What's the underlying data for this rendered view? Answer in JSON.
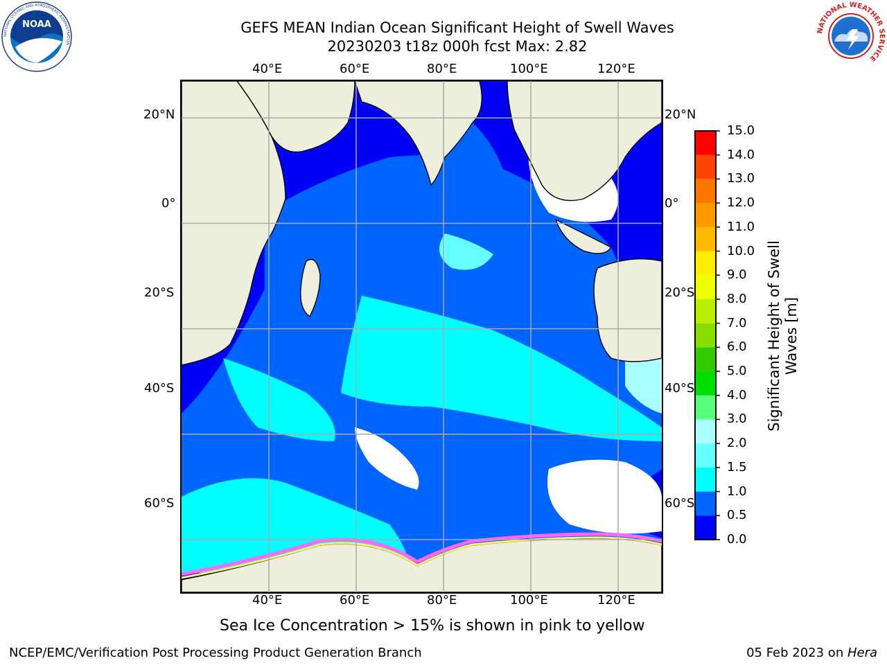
{
  "header": {
    "title_line1": "GEFS MEAN Indian Ocean Significant Height of Swell Waves",
    "title_line2": "20230203 t18z 000h fcst   Max: 2.82"
  },
  "logos": {
    "noaa": "NOAA",
    "nws_ring_text": "NATIONAL WEATHER SERVICE",
    "noaa_ring_text": "NATIONAL OCEANIC AND ATMOSPHERIC ADMINISTRATION"
  },
  "map": {
    "longitude_labels_top": [
      "40°E",
      "60°E",
      "80°E",
      "100°E",
      "120°E"
    ],
    "longitude_labels_bottom": [
      "40°E",
      "60°E",
      "80°E",
      "100°E",
      "120°E"
    ],
    "latitude_labels_left": [
      "20°N",
      "0°",
      "20°S",
      "40°S",
      "60°S"
    ],
    "latitude_labels_right": [
      "20°N",
      "0°",
      "20°S",
      "40°S",
      "60°S"
    ],
    "longitude_range": [
      20,
      130
    ],
    "latitude_range": [
      -70,
      27
    ],
    "gridlines": true,
    "max_value": 2.82,
    "colors": {
      "land": "#eeeedd",
      "masked_ice": "#ffffff",
      "ice_edge": [
        "#ff66ff",
        "#ffcc66",
        "#ffff66"
      ]
    }
  },
  "colorbar": {
    "title": "Significant Height of Swell Waves [m]",
    "tick_labels": [
      "0.0",
      "0.5",
      "1.0",
      "1.5",
      "2.0",
      "3.0",
      "4.0",
      "5.0",
      "6.0",
      "7.0",
      "8.0",
      "9.0",
      "10.0",
      "11.0",
      "12.0",
      "13.0",
      "14.0",
      "15.0"
    ],
    "bin_colors": [
      "#0000ff",
      "#0064ff",
      "#00ffff",
      "#66ffff",
      "#aaffff",
      "#55ff77",
      "#00dd00",
      "#33cc00",
      "#88dd00",
      "#bbee00",
      "#eeff00",
      "#ffee00",
      "#ffbb00",
      "#ff9900",
      "#ff7700",
      "#ff4400",
      "#ff0000"
    ]
  },
  "annotations": {
    "sea_ice_note": "Sea Ice Concentration > 15% is shown in pink to yellow"
  },
  "footer": {
    "left": "NCEP/EMC/Verification Post Processing Product Generation Branch",
    "right_date": "05 Feb 2023 on ",
    "right_machine": "Hera"
  }
}
